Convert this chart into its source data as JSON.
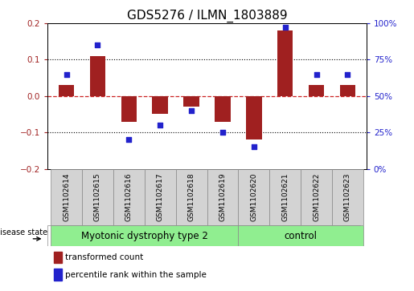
{
  "title": "GDS5276 / ILMN_1803889",
  "samples": [
    "GSM1102614",
    "GSM1102615",
    "GSM1102616",
    "GSM1102617",
    "GSM1102618",
    "GSM1102619",
    "GSM1102620",
    "GSM1102621",
    "GSM1102622",
    "GSM1102623"
  ],
  "transformed_count": [
    0.03,
    0.11,
    -0.07,
    -0.05,
    -0.03,
    -0.07,
    -0.12,
    0.18,
    0.03,
    0.03
  ],
  "percentile_rank": [
    65,
    85,
    20,
    30,
    40,
    25,
    15,
    97,
    65,
    65
  ],
  "ylim_left": [
    -0.2,
    0.2
  ],
  "ylim_right": [
    0,
    100
  ],
  "yticks_left": [
    -0.2,
    -0.1,
    0.0,
    0.1,
    0.2
  ],
  "yticks_right": [
    0,
    25,
    50,
    75,
    100
  ],
  "ytick_labels_right": [
    "0%",
    "25%",
    "50%",
    "75%",
    "100%"
  ],
  "bar_color": "#a02020",
  "dot_color": "#2222cc",
  "zero_line_color": "#cc2222",
  "grid_color": "#000000",
  "group1_label": "Myotonic dystrophy type 2",
  "group2_label": "control",
  "group1_count": 6,
  "group2_count": 4,
  "group_color": "#90ee90",
  "sample_box_color": "#d3d3d3",
  "disease_state_label": "disease state",
  "legend_red_label": "transformed count",
  "legend_blue_label": "percentile rank within the sample",
  "bar_width": 0.5,
  "title_fontsize": 11,
  "tick_fontsize": 7.5,
  "sample_fontsize": 6.5,
  "group_fontsize": 8.5,
  "legend_fontsize": 7.5,
  "ds_fontsize": 7
}
